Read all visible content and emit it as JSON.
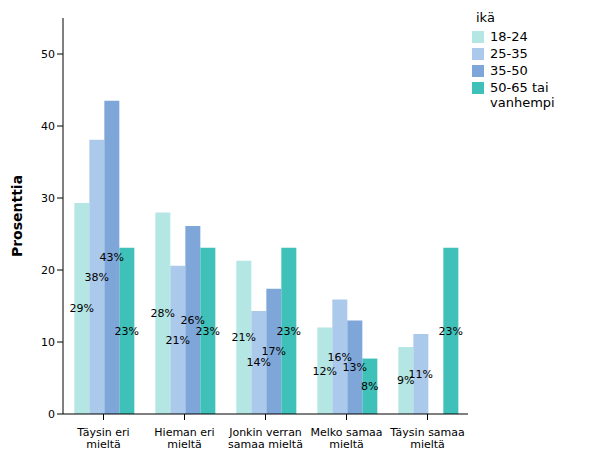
{
  "chart_data": {
    "type": "bar",
    "y_label": "Prosenttia",
    "legend_title": "ikä",
    "legend": "top-right",
    "grid": false,
    "data_labels": true,
    "categories": [
      "Täysin eri mieltä",
      "Hieman eri mieltä",
      "Jonkin verran samaa mieltä",
      "Melko samaa mieltä",
      "Täysin samaa mieltä"
    ],
    "ylim": [
      0,
      55
    ],
    "yticks": [
      0,
      10,
      20,
      30,
      40,
      50
    ],
    "series": [
      {
        "name": "18-24",
        "color": "#b4e6e4",
        "values": [
          29.3,
          28.0,
          21.3,
          12.0,
          9.3
        ],
        "value_labels": [
          "29%",
          "28%",
          "21%",
          "12%",
          "9%"
        ]
      },
      {
        "name": "25-35",
        "color": "#abc9ea",
        "values": [
          38.1,
          20.6,
          14.3,
          15.9,
          11.1
        ],
        "value_labels": [
          "38%",
          "21%",
          "14%",
          "16%",
          "11%"
        ]
      },
      {
        "name": "35-50",
        "color": "#7ea6d9",
        "values": [
          43.5,
          26.1,
          17.4,
          13.0,
          null
        ],
        "value_labels": [
          "43%",
          "26%",
          "17%",
          "13%",
          null
        ]
      },
      {
        "name": "50-65 tai vanhempi",
        "color": "#3fc0b9",
        "values": [
          23.1,
          23.1,
          23.1,
          7.7,
          23.1
        ],
        "value_labels": [
          "23%",
          "23%",
          "23%",
          "8%",
          "23%"
        ]
      }
    ]
  }
}
